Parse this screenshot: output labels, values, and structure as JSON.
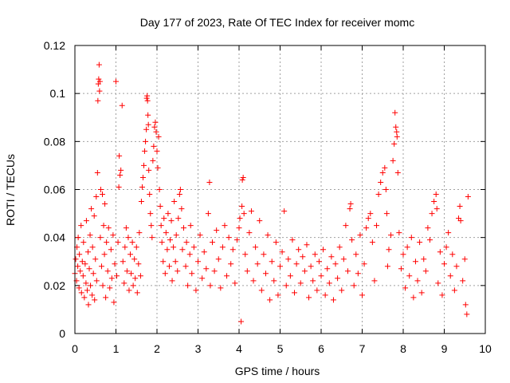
{
  "chart_data": {
    "type": "scatter",
    "title": "Day 177 of 2023, Rate Of TEC Index for receiver momc",
    "xlabel": "GPS time / hours",
    "ylabel": "ROTI / TECUs",
    "xlim": [
      0,
      10
    ],
    "ylim": [
      0,
      0.12
    ],
    "x_ticks": [
      "0",
      "1",
      "2",
      "3",
      "4",
      "5",
      "6",
      "7",
      "8",
      "9",
      "10"
    ],
    "y_ticks": [
      "0",
      "0.02",
      "0.04",
      "0.06",
      "0.08",
      "0.1",
      "0.12"
    ],
    "grid": true,
    "marker": "+",
    "marker_color": "#ff0000",
    "series": [
      {
        "name": "ROTI",
        "points": [
          [
            0.0,
            0.025
          ],
          [
            0.02,
            0.031
          ],
          [
            0.04,
            0.022
          ],
          [
            0.05,
            0.036
          ],
          [
            0.07,
            0.028
          ],
          [
            0.08,
            0.04
          ],
          [
            0.1,
            0.019
          ],
          [
            0.11,
            0.033
          ],
          [
            0.13,
            0.026
          ],
          [
            0.15,
            0.045
          ],
          [
            0.16,
            0.017
          ],
          [
            0.18,
            0.03
          ],
          [
            0.2,
            0.024
          ],
          [
            0.21,
            0.038
          ],
          [
            0.23,
            0.015
          ],
          [
            0.25,
            0.029
          ],
          [
            0.27,
            0.021
          ],
          [
            0.28,
            0.047
          ],
          [
            0.3,
            0.018
          ],
          [
            0.32,
            0.034
          ],
          [
            0.33,
            0.012
          ],
          [
            0.35,
            0.027
          ],
          [
            0.37,
            0.041
          ],
          [
            0.38,
            0.02
          ],
          [
            0.4,
            0.052
          ],
          [
            0.42,
            0.016
          ],
          [
            0.43,
            0.036
          ],
          [
            0.45,
            0.025
          ],
          [
            0.47,
            0.049
          ],
          [
            0.48,
            0.014
          ],
          [
            0.5,
            0.031
          ],
          [
            0.52,
            0.057
          ],
          [
            0.53,
            0.022
          ],
          [
            0.55,
            0.067
          ],
          [
            0.56,
            0.097
          ],
          [
            0.57,
            0.104
          ],
          [
            0.58,
            0.106
          ],
          [
            0.59,
            0.112
          ],
          [
            0.6,
            0.101
          ],
          [
            0.61,
            0.105
          ],
          [
            0.62,
            0.04
          ],
          [
            0.63,
            0.06
          ],
          [
            0.65,
            0.028
          ],
          [
            0.67,
            0.058
          ],
          [
            0.68,
            0.02
          ],
          [
            0.7,
            0.045
          ],
          [
            0.72,
            0.033
          ],
          [
            0.73,
            0.054
          ],
          [
            0.75,
            0.015
          ],
          [
            0.77,
            0.038
          ],
          [
            0.8,
            0.026
          ],
          [
            0.82,
            0.044
          ],
          [
            0.85,
            0.019
          ],
          [
            0.88,
            0.035
          ],
          [
            0.9,
            0.023
          ],
          [
            0.93,
            0.041
          ],
          [
            0.95,
            0.013
          ],
          [
            0.97,
            0.029
          ],
          [
            1.0,
            0.105
          ],
          [
            1.02,
            0.024
          ],
          [
            1.05,
            0.038
          ],
          [
            1.07,
            0.061
          ],
          [
            1.08,
            0.074
          ],
          [
            1.1,
            0.066
          ],
          [
            1.12,
            0.068
          ],
          [
            1.15,
            0.095
          ],
          [
            1.17,
            0.03
          ],
          [
            1.2,
            0.021
          ],
          [
            1.22,
            0.036
          ],
          [
            1.25,
            0.044
          ],
          [
            1.27,
            0.026
          ],
          [
            1.3,
            0.04
          ],
          [
            1.32,
            0.018
          ],
          [
            1.35,
            0.033
          ],
          [
            1.37,
            0.025
          ],
          [
            1.4,
            0.038
          ],
          [
            1.42,
            0.02
          ],
          [
            1.45,
            0.031
          ],
          [
            1.47,
            0.023
          ],
          [
            1.5,
            0.036
          ],
          [
            1.52,
            0.017
          ],
          [
            1.55,
            0.029
          ],
          [
            1.57,
            0.042
          ],
          [
            1.6,
            0.024
          ],
          [
            1.62,
            0.055
          ],
          [
            1.64,
            0.061
          ],
          [
            1.66,
            0.065
          ],
          [
            1.68,
            0.07
          ],
          [
            1.7,
            0.076
          ],
          [
            1.72,
            0.08
          ],
          [
            1.74,
            0.085
          ],
          [
            1.75,
            0.098
          ],
          [
            1.76,
            0.099
          ],
          [
            1.77,
            0.097
          ],
          [
            1.78,
            0.091
          ],
          [
            1.79,
            0.087
          ],
          [
            1.8,
            0.068
          ],
          [
            1.82,
            0.058
          ],
          [
            1.84,
            0.05
          ],
          [
            1.86,
            0.045
          ],
          [
            1.88,
            0.04
          ],
          [
            1.9,
            0.072
          ],
          [
            1.92,
            0.078
          ],
          [
            1.94,
            0.086
          ],
          [
            1.96,
            0.088
          ],
          [
            1.98,
            0.084
          ],
          [
            2.0,
            0.076
          ],
          [
            2.02,
            0.069
          ],
          [
            2.04,
            0.082
          ],
          [
            2.06,
            0.06
          ],
          [
            2.08,
            0.053
          ],
          [
            2.1,
            0.045
          ],
          [
            2.12,
            0.038
          ],
          [
            2.15,
            0.03
          ],
          [
            2.17,
            0.048
          ],
          [
            2.2,
            0.025
          ],
          [
            2.22,
            0.042
          ],
          [
            2.25,
            0.035
          ],
          [
            2.27,
            0.05
          ],
          [
            2.3,
            0.028
          ],
          [
            2.32,
            0.039
          ],
          [
            2.35,
            0.047
          ],
          [
            2.37,
            0.022
          ],
          [
            2.4,
            0.036
          ],
          [
            2.42,
            0.055
          ],
          [
            2.45,
            0.03
          ],
          [
            2.47,
            0.041
          ],
          [
            2.5,
            0.026
          ],
          [
            2.52,
            0.048
          ],
          [
            2.55,
            0.058
          ],
          [
            2.57,
            0.06
          ],
          [
            2.6,
            0.052
          ],
          [
            2.62,
            0.035
          ],
          [
            2.65,
            0.044
          ],
          [
            2.7,
            0.028
          ],
          [
            2.72,
            0.038
          ],
          [
            2.75,
            0.02
          ],
          [
            2.8,
            0.033
          ],
          [
            2.82,
            0.045
          ],
          [
            2.85,
            0.025
          ],
          [
            2.9,
            0.036
          ],
          [
            2.95,
            0.018
          ],
          [
            3.0,
            0.03
          ],
          [
            3.05,
            0.041
          ],
          [
            3.1,
            0.023
          ],
          [
            3.15,
            0.034
          ],
          [
            3.2,
            0.027
          ],
          [
            3.25,
            0.05
          ],
          [
            3.28,
            0.063
          ],
          [
            3.3,
            0.02
          ],
          [
            3.35,
            0.038
          ],
          [
            3.4,
            0.026
          ],
          [
            3.45,
            0.043
          ],
          [
            3.5,
            0.031
          ],
          [
            3.55,
            0.019
          ],
          [
            3.6,
            0.036
          ],
          [
            3.65,
            0.045
          ],
          [
            3.7,
            0.024
          ],
          [
            3.75,
            0.04
          ],
          [
            3.8,
            0.029
          ],
          [
            3.85,
            0.035
          ],
          [
            3.9,
            0.021
          ],
          [
            3.95,
            0.039
          ],
          [
            4.0,
            0.044
          ],
          [
            4.02,
            0.048
          ],
          [
            4.05,
            0.005
          ],
          [
            4.07,
            0.053
          ],
          [
            4.08,
            0.064
          ],
          [
            4.1,
            0.065
          ],
          [
            4.12,
            0.05
          ],
          [
            4.15,
            0.033
          ],
          [
            4.2,
            0.026
          ],
          [
            4.25,
            0.042
          ],
          [
            4.3,
            0.051
          ],
          [
            4.35,
            0.022
          ],
          [
            4.4,
            0.036
          ],
          [
            4.45,
            0.029
          ],
          [
            4.5,
            0.047
          ],
          [
            4.55,
            0.018
          ],
          [
            4.6,
            0.033
          ],
          [
            4.65,
            0.025
          ],
          [
            4.7,
            0.041
          ],
          [
            4.75,
            0.014
          ],
          [
            4.8,
            0.03
          ],
          [
            4.85,
            0.022
          ],
          [
            4.9,
            0.038
          ],
          [
            4.95,
            0.016
          ],
          [
            5.0,
            0.028
          ],
          [
            5.05,
            0.034
          ],
          [
            5.1,
            0.051
          ],
          [
            5.15,
            0.02
          ],
          [
            5.2,
            0.031
          ],
          [
            5.25,
            0.024
          ],
          [
            5.3,
            0.039
          ],
          [
            5.35,
            0.017
          ],
          [
            5.4,
            0.029
          ],
          [
            5.45,
            0.035
          ],
          [
            5.5,
            0.021
          ],
          [
            5.55,
            0.032
          ],
          [
            5.6,
            0.026
          ],
          [
            5.65,
            0.037
          ],
          [
            5.7,
            0.015
          ],
          [
            5.75,
            0.028
          ],
          [
            5.8,
            0.022
          ],
          [
            5.85,
            0.033
          ],
          [
            5.9,
            0.018
          ],
          [
            5.95,
            0.03
          ],
          [
            6.0,
            0.024
          ],
          [
            6.05,
            0.035
          ],
          [
            6.1,
            0.016
          ],
          [
            6.15,
            0.027
          ],
          [
            6.2,
            0.021
          ],
          [
            6.25,
            0.032
          ],
          [
            6.3,
            0.014
          ],
          [
            6.35,
            0.029
          ],
          [
            6.4,
            0.023
          ],
          [
            6.45,
            0.036
          ],
          [
            6.5,
            0.018
          ],
          [
            6.55,
            0.031
          ],
          [
            6.6,
            0.045
          ],
          [
            6.65,
            0.026
          ],
          [
            6.7,
            0.052
          ],
          [
            6.72,
            0.054
          ],
          [
            6.75,
            0.039
          ],
          [
            6.8,
            0.02
          ],
          [
            6.85,
            0.033
          ],
          [
            6.9,
            0.025
          ],
          [
            6.95,
            0.041
          ],
          [
            7.0,
            0.016
          ],
          [
            7.05,
            0.029
          ],
          [
            7.1,
            0.044
          ],
          [
            7.15,
            0.048
          ],
          [
            7.2,
            0.05
          ],
          [
            7.25,
            0.038
          ],
          [
            7.3,
            0.022
          ],
          [
            7.35,
            0.045
          ],
          [
            7.4,
            0.058
          ],
          [
            7.45,
            0.063
          ],
          [
            7.5,
            0.067
          ],
          [
            7.55,
            0.069
          ],
          [
            7.58,
            0.06
          ],
          [
            7.6,
            0.05
          ],
          [
            7.62,
            0.028
          ],
          [
            7.65,
            0.035
          ],
          [
            7.7,
            0.041
          ],
          [
            7.75,
            0.072
          ],
          [
            7.78,
            0.079
          ],
          [
            7.8,
            0.092
          ],
          [
            7.82,
            0.086
          ],
          [
            7.84,
            0.084
          ],
          [
            7.85,
            0.082
          ],
          [
            7.87,
            0.067
          ],
          [
            7.9,
            0.042
          ],
          [
            7.95,
            0.027
          ],
          [
            8.0,
            0.033
          ],
          [
            8.05,
            0.019
          ],
          [
            8.1,
            0.036
          ],
          [
            8.15,
            0.024
          ],
          [
            8.2,
            0.04
          ],
          [
            8.25,
            0.015
          ],
          [
            8.3,
            0.03
          ],
          [
            8.35,
            0.022
          ],
          [
            8.4,
            0.038
          ],
          [
            8.45,
            0.017
          ],
          [
            8.5,
            0.031
          ],
          [
            8.55,
            0.026
          ],
          [
            8.6,
            0.044
          ],
          [
            8.65,
            0.039
          ],
          [
            8.7,
            0.05
          ],
          [
            8.75,
            0.055
          ],
          [
            8.8,
            0.058
          ],
          [
            8.82,
            0.052
          ],
          [
            8.85,
            0.021
          ],
          [
            8.9,
            0.034
          ],
          [
            8.95,
            0.016
          ],
          [
            9.0,
            0.029
          ],
          [
            9.05,
            0.036
          ],
          [
            9.1,
            0.042
          ],
          [
            9.15,
            0.024
          ],
          [
            9.2,
            0.033
          ],
          [
            9.25,
            0.018
          ],
          [
            9.3,
            0.028
          ],
          [
            9.35,
            0.048
          ],
          [
            9.38,
            0.053
          ],
          [
            9.4,
            0.047
          ],
          [
            9.45,
            0.022
          ],
          [
            9.5,
            0.031
          ],
          [
            9.52,
            0.012
          ],
          [
            9.55,
            0.008
          ],
          [
            9.58,
            0.057
          ]
        ]
      }
    ]
  }
}
